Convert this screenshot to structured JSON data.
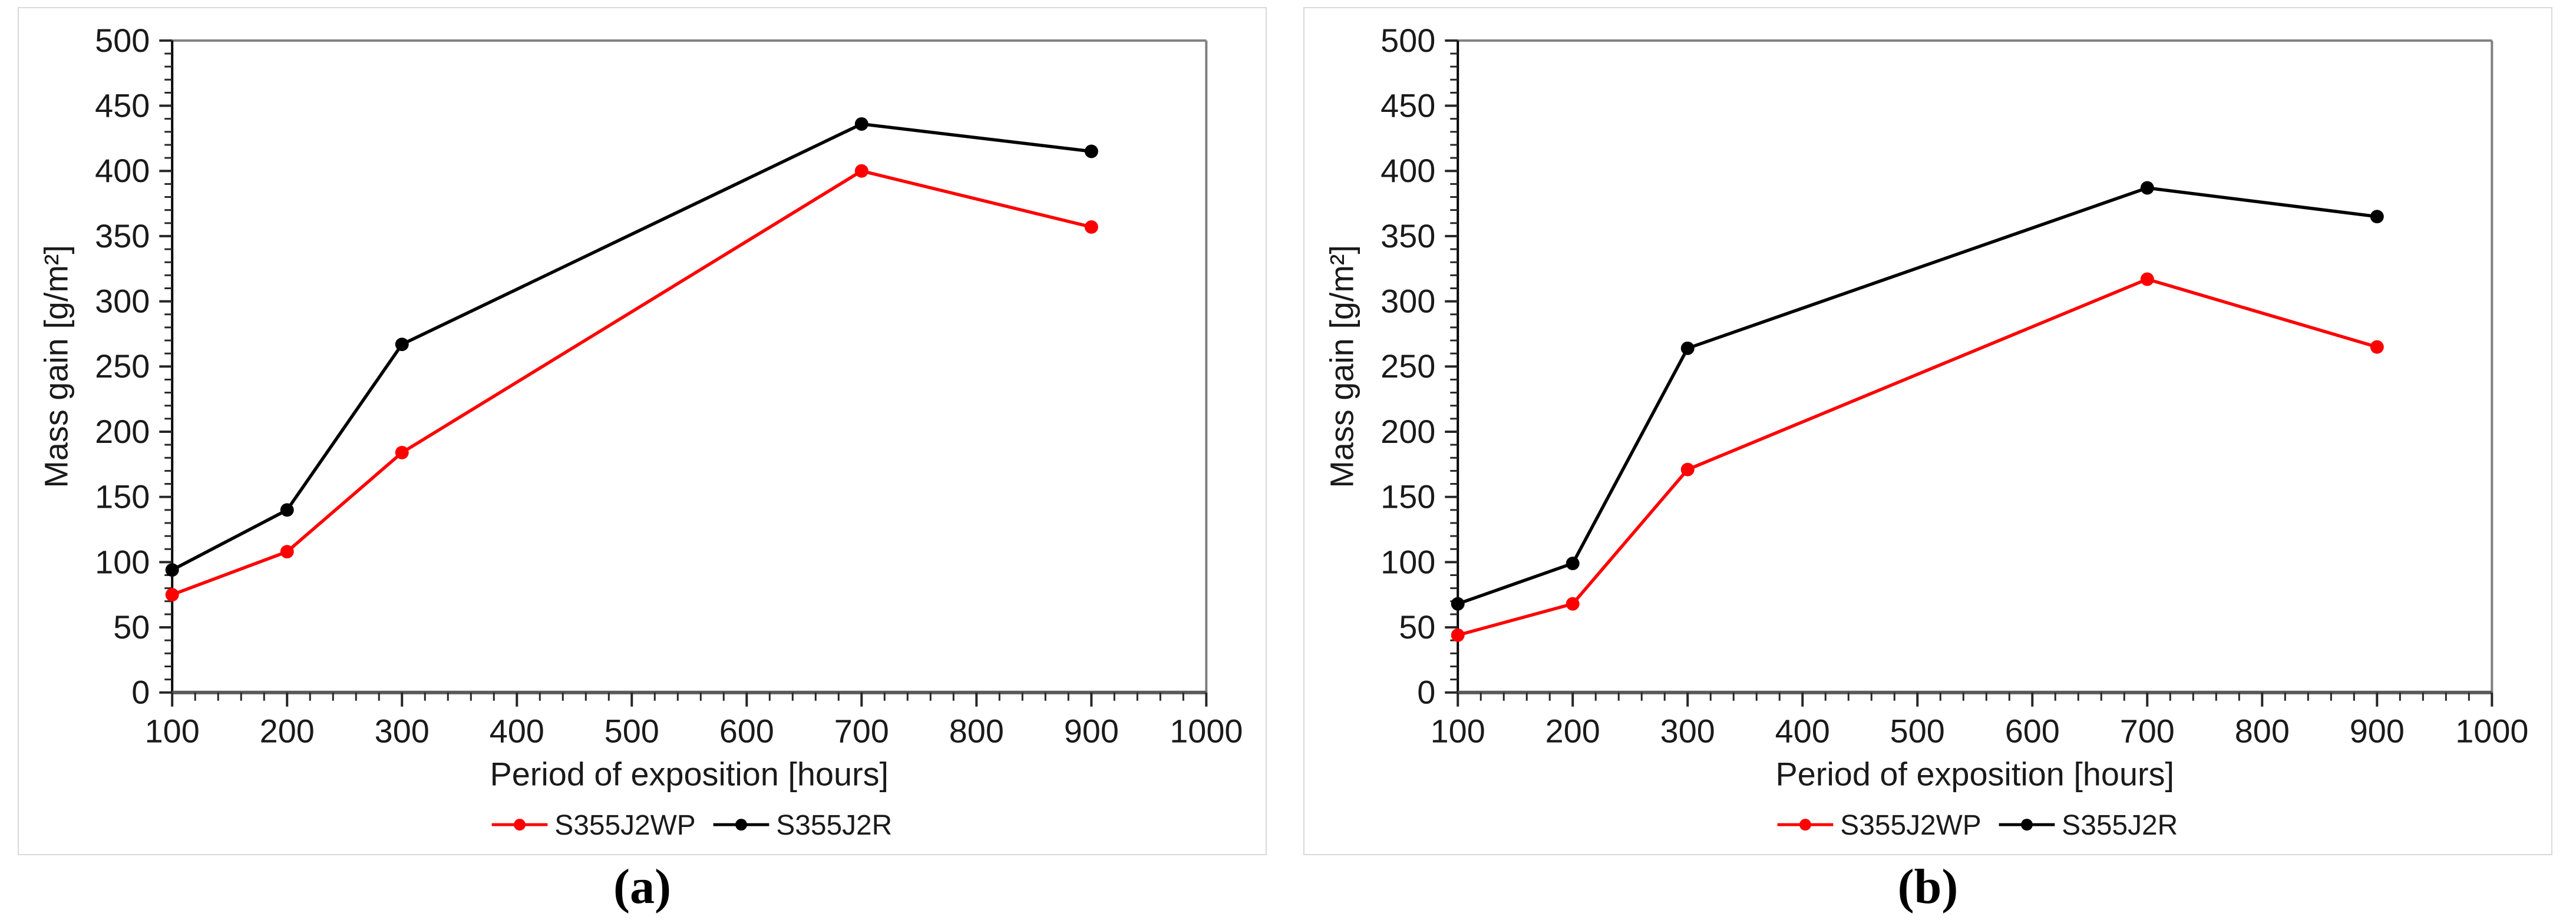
{
  "figure": {
    "background": "#ffffff",
    "colors": {
      "panel_border": "#d9d9d9",
      "plot_frame": "#808080",
      "axis_line": "#595959",
      "y_axis_line": "#000000",
      "tick": "#262626",
      "text": "#1a1a1a",
      "series_red": "#ff0000",
      "series_black": "#000000"
    }
  },
  "chart_data": [
    {
      "id": "a",
      "caption": "(a)",
      "type": "line",
      "title": "",
      "xlabel": "Period of exposition [hours]",
      "ylabel": "Mass gain [g/m²]",
      "xlim": [
        100,
        1000
      ],
      "ylim": [
        0,
        500
      ],
      "x_ticks": [
        100,
        200,
        300,
        400,
        500,
        600,
        700,
        800,
        900,
        1000
      ],
      "y_ticks": [
        0,
        50,
        100,
        150,
        200,
        250,
        300,
        350,
        400,
        450,
        500
      ],
      "x_minor_step": 20,
      "y_minor_step": 10,
      "grid": false,
      "legend_position": "bottom-center",
      "marker": "circle",
      "x": [
        100,
        200,
        300,
        700,
        900
      ],
      "series": [
        {
          "name": "S355J2WP",
          "color": "#ff0000",
          "values": [
            75,
            108,
            184,
            400,
            357
          ]
        },
        {
          "name": "S355J2R",
          "color": "#000000",
          "values": [
            94,
            140,
            267,
            436,
            415
          ]
        }
      ]
    },
    {
      "id": "b",
      "caption": "(b)",
      "type": "line",
      "title": "",
      "xlabel": "Period of exposition [hours]",
      "ylabel": "Mass gain [g/m²]",
      "xlim": [
        100,
        1000
      ],
      "ylim": [
        0,
        500
      ],
      "x_ticks": [
        100,
        200,
        300,
        400,
        500,
        600,
        700,
        800,
        900,
        1000
      ],
      "y_ticks": [
        0,
        50,
        100,
        150,
        200,
        250,
        300,
        350,
        400,
        450,
        500
      ],
      "x_minor_step": 20,
      "y_minor_step": 10,
      "grid": false,
      "legend_position": "bottom-center",
      "marker": "circle",
      "x": [
        100,
        200,
        300,
        700,
        900
      ],
      "series": [
        {
          "name": "S355J2WP",
          "color": "#ff0000",
          "values": [
            44,
            68,
            171,
            317,
            265
          ]
        },
        {
          "name": "S355J2R",
          "color": "#000000",
          "values": [
            68,
            99,
            264,
            387,
            365
          ]
        }
      ]
    }
  ]
}
